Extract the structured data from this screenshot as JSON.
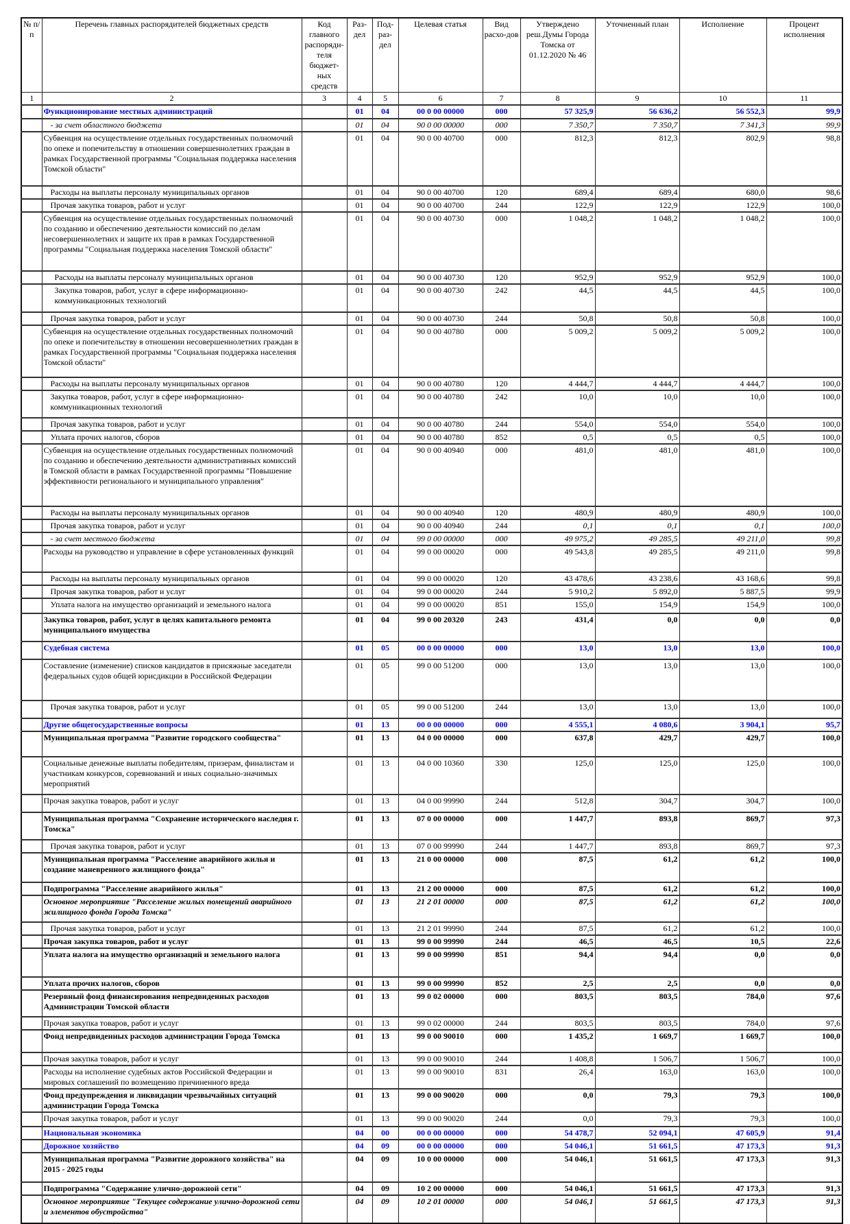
{
  "header": {
    "columns": [
      "№ п/п",
      "Перечень главных распорядителей бюджетных средств",
      "Код главного распоряди-теля бюджет-ных средств",
      "Раз-дел",
      "Под-раз-дел",
      "Целевая статья",
      "Вид расхо-дов",
      "Утверждено реш.Думы Города Томска от 01.12.2020 № 46",
      "Уточненный план",
      "Исполнение",
      "Процент исполнения"
    ],
    "numbers": [
      "1",
      "2",
      "3",
      "4",
      "5",
      "6",
      "7",
      "8",
      "9",
      "10",
      "11"
    ]
  },
  "colors": {
    "section": "#0000ee",
    "text": "#000000"
  },
  "rows": [
    {
      "style": "section",
      "label": "Функционирование местных администраций",
      "rz": "01",
      "prz": "04",
      "cs": "00 0 00 00000",
      "vr": "000",
      "v": [
        "57 325,9",
        "56 636,2",
        "56 552,3",
        "99,9"
      ]
    },
    {
      "style": "italic",
      "indent": 1,
      "label": "- за счет областного бюджета",
      "rz": "01",
      "prz": "04",
      "cs": "90 0 00 00000",
      "vr": "000",
      "v": [
        "7 350,7",
        "7 350,7",
        "7 341,3",
        "99,9"
      ]
    },
    {
      "style": "normal",
      "label": "Субвенция на осуществление отдельных государственных полномочий по опеке и попечительству в отношении совершеннолетних граждан в рамках Государственной программы \"Социальная поддержка населения Томской области\"",
      "rz": "01",
      "prz": "04",
      "cs": "90 0 00 40700",
      "vr": "000",
      "v": [
        "812,3",
        "812,3",
        "802,9",
        "98,8"
      ]
    },
    {
      "style": "normal",
      "indent": 1,
      "label": "Расходы на выплаты персоналу муниципальных органов",
      "rz": "01",
      "prz": "04",
      "cs": "90 0 00 40700",
      "vr": "120",
      "v": [
        "689,4",
        "689,4",
        "680,0",
        "98,6"
      ]
    },
    {
      "style": "normal",
      "indent": 1,
      "label": "Прочая закупка товаров, работ и услуг",
      "rz": "01",
      "prz": "04",
      "cs": "90 0 00 40700",
      "vr": "244",
      "v": [
        "122,9",
        "122,9",
        "122,9",
        "100,0"
      ]
    },
    {
      "style": "normal",
      "label": "Субвенция на осуществление отдельных государственных полномочий по созданию и обеспечению деятельности комиссий по делам несовершеннолетних и защите их прав в рамках Государственной программы  \"Социальная поддержка населения Томской области\"",
      "rz": "01",
      "prz": "04",
      "cs": "90 0 00 40730",
      "vr": "000",
      "v": [
        "1 048,2",
        "1 048,2",
        "1 048,2",
        "100,0"
      ]
    },
    {
      "style": "normal",
      "indent": 2,
      "label": "Расходы на выплаты персоналу муниципальных органов",
      "rz": "01",
      "prz": "04",
      "cs": "90 0 00 40730",
      "vr": "120",
      "v": [
        "952,9",
        "952,9",
        "952,9",
        "100,0"
      ]
    },
    {
      "style": "normal",
      "indent": 2,
      "label": "Закупка товаров, работ, услуг в сфере информационно-коммуникационных технологий",
      "rz": "01",
      "prz": "04",
      "cs": "90 0 00 40730",
      "vr": "242",
      "v": [
        "44,5",
        "44,5",
        "44,5",
        "100,0"
      ]
    },
    {
      "style": "normal",
      "indent": 1,
      "label": "Прочая закупка товаров, работ и услуг",
      "rz": "01",
      "prz": "04",
      "cs": "90 0 00 40730",
      "vr": "244",
      "v": [
        "50,8",
        "50,8",
        "50,8",
        "100,0"
      ]
    },
    {
      "style": "normal",
      "label": "Субвенция на осуществление отдельных государственных полномочий по опеке и попечительству в  отношении несовершеннолетних граждан в рамках Государственной программы \"Социальная поддержка населения Томской области\"",
      "rz": "01",
      "prz": "04",
      "cs": "90 0 00 40780",
      "vr": "000",
      "v": [
        "5 009,2",
        "5 009,2",
        "5 009,2",
        "100,0"
      ]
    },
    {
      "style": "normal",
      "indent": 1,
      "label": "Расходы на выплаты персоналу муниципальных органов",
      "rz": "01",
      "prz": "04",
      "cs": "90 0 00 40780",
      "vr": "120",
      "v": [
        "4 444,7",
        "4 444,7",
        "4 444,7",
        "100,0"
      ]
    },
    {
      "style": "normal",
      "indent": 1,
      "label": "Закупка товаров, работ, услуг в сфере информационно-коммуникационных технологий",
      "rz": "01",
      "prz": "04",
      "cs": "90 0 00 40780",
      "vr": "242",
      "v": [
        "10,0",
        "10,0",
        "10,0",
        "100,0"
      ]
    },
    {
      "style": "normal",
      "indent": 1,
      "label": "Прочая закупка товаров, работ и услуг",
      "rz": "01",
      "prz": "04",
      "cs": "90 0 00 40780",
      "vr": "244",
      "v": [
        "554,0",
        "554,0",
        "554,0",
        "100,0"
      ]
    },
    {
      "style": "normal",
      "indent": 1,
      "label": "Уплата прочих налогов, сборов",
      "rz": "01",
      "prz": "04",
      "cs": "90 0 00 40780",
      "vr": "852",
      "v": [
        "0,5",
        "0,5",
        "0,5",
        "100,0"
      ]
    },
    {
      "style": "normal",
      "label": " Субвенция на осуществление отдельных государственных полномочий по созданию и обеспечению деятельности административных комиссий в Томской области в рамках Государственной программы \"Повышение эффективности регионального и муниципального управления\"",
      "rz": "01",
      "prz": "04",
      "cs": "90 0 00 40940",
      "vr": "000",
      "v": [
        "481,0",
        "481,0",
        "481,0",
        "100,0"
      ]
    },
    {
      "style": "normal",
      "indent": 1,
      "label": "Расходы на выплаты персоналу муниципальных органов",
      "rz": "01",
      "prz": "04",
      "cs": "90 0 00 40940",
      "vr": "120",
      "v": [
        "480,9",
        "480,9",
        "480,9",
        "100,0"
      ]
    },
    {
      "style": "italicnums",
      "indent": 1,
      "label": "Прочая закупка товаров, работ и услуг",
      "rz": "01",
      "prz": "04",
      "cs": "90 0 00 40940",
      "vr": "244",
      "v": [
        "0,1",
        "0,1",
        "0,1",
        "100,0"
      ]
    },
    {
      "style": "italic",
      "indent": 1,
      "label": "- за счет местного бюджета",
      "rz": "01",
      "prz": "04",
      "cs": "99 0 00 00000",
      "vr": "000",
      "v": [
        "49 975,2",
        "49 285,5",
        "49 211,0",
        "99,8"
      ]
    },
    {
      "style": "normal",
      "label": " Расходы на руководство и управление в сфере установленных функций",
      "rz": "01",
      "prz": "04",
      "cs": "99 0 00 00020",
      "vr": "000",
      "v": [
        "49 543,8",
        "49 285,5",
        "49 211,0",
        "99,8"
      ]
    },
    {
      "style": "normal",
      "indent": 1,
      "label": "Расходы на выплаты персоналу муниципальных органов",
      "rz": "01",
      "prz": "04",
      "cs": "99 0 00 00020",
      "vr": "120",
      "v": [
        "43 478,6",
        "43 238,6",
        "43 168,6",
        "99,8"
      ]
    },
    {
      "style": "normal",
      "indent": 1,
      "label": "Прочая закупка товаров, работ и услуг",
      "rz": "01",
      "prz": "04",
      "cs": "99 0 00 00020",
      "vr": "244",
      "v": [
        "5 910,2",
        "5 892,0",
        "5 887,5",
        "99,9"
      ]
    },
    {
      "style": "normal",
      "indent": 1,
      "label": "Уплата налога на имущество организаций и земельного налога",
      "rz": "01",
      "prz": "04",
      "cs": "99 0 00 00020",
      "vr": "851",
      "v": [
        "155,0",
        "154,9",
        "154,9",
        "100,0"
      ]
    },
    {
      "style": "bold",
      "label": " Закупка товаров, работ, услуг в целях капитального ремонта муниципального имущества",
      "rz": "01",
      "prz": "04",
      "cs": "99 0 00 20320",
      "vr": "243",
      "v": [
        "431,4",
        "0,0",
        "0,0",
        "0,0"
      ]
    },
    {
      "style": "section",
      "label": "Судебная система",
      "rz": "01",
      "prz": "05",
      "cs": "00 0 00 00000",
      "vr": "000",
      "v": [
        "13,0",
        "13,0",
        "13,0",
        "100,0"
      ]
    },
    {
      "style": "normal",
      "label": "Составление (изменение) списков кандидатов в присяжные заседатели федеральных судов общей юрисдикции в Российской Федерации",
      "rz": "01",
      "prz": "05",
      "cs": "99 0 00 51200",
      "vr": "000",
      "v": [
        "13,0",
        "13,0",
        "13,0",
        "100,0"
      ]
    },
    {
      "style": "normal",
      "indent": 1,
      "label": "Прочая закупка товаров, работ и услуг",
      "rz": "01",
      "prz": "05",
      "cs": "99 0 00 51200",
      "vr": "244",
      "v": [
        "13,0",
        "13,0",
        "13,0",
        "100,0"
      ]
    },
    {
      "style": "section",
      "label": "Другие общегосударственные вопросы",
      "rz": "01",
      "prz": "13",
      "cs": "00 0 00 00000",
      "vr": "000",
      "v": [
        "4 555,1",
        "4 080,6",
        "3 904,1",
        "95,7"
      ]
    },
    {
      "style": "bold",
      "label": "Муниципальная программа \"Развитие городского сообщества\"",
      "rz": "01",
      "prz": "13",
      "cs": "04 0 00 00000",
      "vr": "000",
      "v": [
        "637,8",
        "429,7",
        "429,7",
        "100,0"
      ]
    },
    {
      "style": "normal",
      "label": " Социальные денежные выплаты победителям, призерам, финалистам и участникам конкурсов, соревнований и иных социально-значимых мероприятий",
      "rz": "01",
      "prz": "13",
      "cs": "04 0 00 10360",
      "vr": "330",
      "v": [
        "125,0",
        "125,0",
        "125,0",
        "100,0"
      ]
    },
    {
      "style": "normal",
      "label": "Прочая закупка товаров, работ и услуг",
      "rz": "01",
      "prz": "13",
      "cs": "04 0 00 99990",
      "vr": "244",
      "v": [
        "512,8",
        "304,7",
        "304,7",
        "100,0"
      ]
    },
    {
      "style": "bold",
      "label": "Муниципальная программа \"Сохранение исторического наследия г. Томска\"",
      "rz": "01",
      "prz": "13",
      "cs": "07 0 00 00000",
      "vr": "000",
      "v": [
        "1 447,7",
        "893,8",
        "869,7",
        "97,3"
      ]
    },
    {
      "style": "normal",
      "indent": 1,
      "label": "Прочая закупка товаров, работ и услуг",
      "rz": "01",
      "prz": "13",
      "cs": "07 0 00 99990",
      "vr": "244",
      "v": [
        "1 447,7",
        "893,8",
        "869,7",
        "97,3"
      ]
    },
    {
      "style": "bold",
      "label": "Муниципальная программа \"Расселение аварийного жилья и создание маневренного жилищного фонда\"",
      "rz": "01",
      "prz": "13",
      "cs": "21 0 00 00000",
      "vr": "000",
      "v": [
        "87,5",
        "61,2",
        "61,2",
        "100,0"
      ]
    },
    {
      "style": "bold",
      "label": "Подпрограмма \"Расселение аварийного жилья\"",
      "rz": "01",
      "prz": "13",
      "cs": "21 2 00 00000",
      "vr": "000",
      "v": [
        "87,5",
        "61,2",
        "61,2",
        "100,0"
      ]
    },
    {
      "style": "bolditalic",
      "label": "Основное мероприятие \"Расселение жилых помещений аварийного жилищного фонда Города Томска\"",
      "rz": "01",
      "prz": "13",
      "cs": "21 2 01 00000",
      "vr": "000",
      "v": [
        "87,5",
        "61,2",
        "61,2",
        "100,0"
      ]
    },
    {
      "style": "normal",
      "indent": 1,
      "label": "Прочая закупка товаров, работ и услуг",
      "rz": "01",
      "prz": "13",
      "cs": "21 2 01 99990",
      "vr": "244",
      "v": [
        "87,5",
        "61,2",
        "61,2",
        "100,0"
      ]
    },
    {
      "style": "bold",
      "label": "Прочая закупка товаров, работ и услуг",
      "rz": "01",
      "prz": "13",
      "cs": "99 0 00 99990",
      "vr": "244",
      "v": [
        "46,5",
        "46,5",
        "10,5",
        "22,6"
      ]
    },
    {
      "style": "bold",
      "label": "Уплата налога на имущество организаций и земельного налога",
      "rz": "01",
      "prz": "13",
      "cs": "99 0 00 99990",
      "vr": "851",
      "v": [
        "94,4",
        "94,4",
        "0,0",
        "0,0"
      ]
    },
    {
      "style": "bold",
      "label": "Уплата прочих налогов, сборов",
      "rz": "01",
      "prz": "13",
      "cs": "99 0 00 99990",
      "vr": "852",
      "v": [
        "2,5",
        "2,5",
        "0,0",
        "0,0"
      ]
    },
    {
      "style": "bold",
      "label": "Резервный фонд финансирования непредвиденных расходов Администрации Томской области",
      "rz": "01",
      "prz": "13",
      "cs": "99 0 02 00000",
      "vr": "000",
      "v": [
        "803,5",
        "803,5",
        "784,0",
        "97,6"
      ]
    },
    {
      "style": "normal",
      "label": "Прочая закупка товаров, работ и услуг",
      "rz": "01",
      "prz": "13",
      "cs": "99 0 02 00000",
      "vr": "244",
      "v": [
        "803,5",
        "803,5",
        "784,0",
        "97,6"
      ]
    },
    {
      "style": "bold",
      "label": " Фонд непредвиденных расходов администрации Города Томска",
      "rz": "01",
      "prz": "13",
      "cs": "99 0 00 90010",
      "vr": "000",
      "v": [
        "1 435,2",
        "1 669,7",
        "1 669,7",
        "100,0"
      ]
    },
    {
      "style": "normal",
      "label": "Прочая закупка товаров, работ и услуг",
      "rz": "01",
      "prz": "13",
      "cs": "99 0 00 90010",
      "vr": "244",
      "v": [
        "1 408,8",
        "1 506,7",
        "1 506,7",
        "100,0"
      ]
    },
    {
      "style": "normal",
      "label": "Расходы на исполнение судебных актов Российской Федерации и мировых соглашений по возмещению причиненного вреда",
      "rz": "01",
      "prz": "13",
      "cs": "99 0 00 90010",
      "vr": "831",
      "v": [
        "26,4",
        "163,0",
        "163,0",
        "100,0"
      ]
    },
    {
      "style": "bold",
      "label": "Фонд предупреждения и ликвидации чрезвычайных ситуаций администрации Города Томска",
      "rz": "01",
      "prz": "13",
      "cs": "99 0 00 90020",
      "vr": "000",
      "v": [
        "0,0",
        "79,3",
        "79,3",
        "100,0"
      ]
    },
    {
      "style": "normal",
      "label": "Прочая закупка товаров, работ и услуг",
      "rz": "01",
      "prz": "13",
      "cs": "99 0 00 90020",
      "vr": "244",
      "v": [
        "0,0",
        "79,3",
        "79,3",
        "100,0"
      ]
    },
    {
      "style": "section",
      "label": "Национальная экономика",
      "rz": "04",
      "prz": "00",
      "cs": "00 0 00 00000",
      "vr": "000",
      "v": [
        "54 478,7",
        "52 094,1",
        "47 605,9",
        "91,4"
      ]
    },
    {
      "style": "section",
      "label": "Дорожное хозяйство",
      "rz": "04",
      "prz": "09",
      "cs": "00 0 00 00000",
      "vr": "000",
      "v": [
        "54 046,1",
        "51 661,5",
        "47 173,3",
        "91,3"
      ]
    },
    {
      "style": "bold",
      "label": "Муниципальная программа \"Развитие дорожного хозяйства\" на 2015 - 2025 годы",
      "rz": "04",
      "prz": "09",
      "cs": "10 0 00 00000",
      "vr": "000",
      "v": [
        "54 046,1",
        "51 661,5",
        "47 173,3",
        "91,3"
      ]
    },
    {
      "style": "bold",
      "label": "Подпрограмма \"Содержание улично-дорожной сети\"",
      "rz": "04",
      "prz": "09",
      "cs": "10 2 00 00000",
      "vr": "000",
      "v": [
        "54 046,1",
        "51 661,5",
        "47 173,3",
        "91,3"
      ]
    },
    {
      "style": "bolditalic",
      "label": " Основное мероприятие \"Текущее содержание улично-дорожной сети и элементов обустройства\"",
      "rz": "04",
      "prz": "09",
      "cs": "10 2 01 00000",
      "vr": "000",
      "v": [
        "54 046,1",
        "51 661,5",
        "47 173,3",
        "91,3"
      ]
    }
  ]
}
